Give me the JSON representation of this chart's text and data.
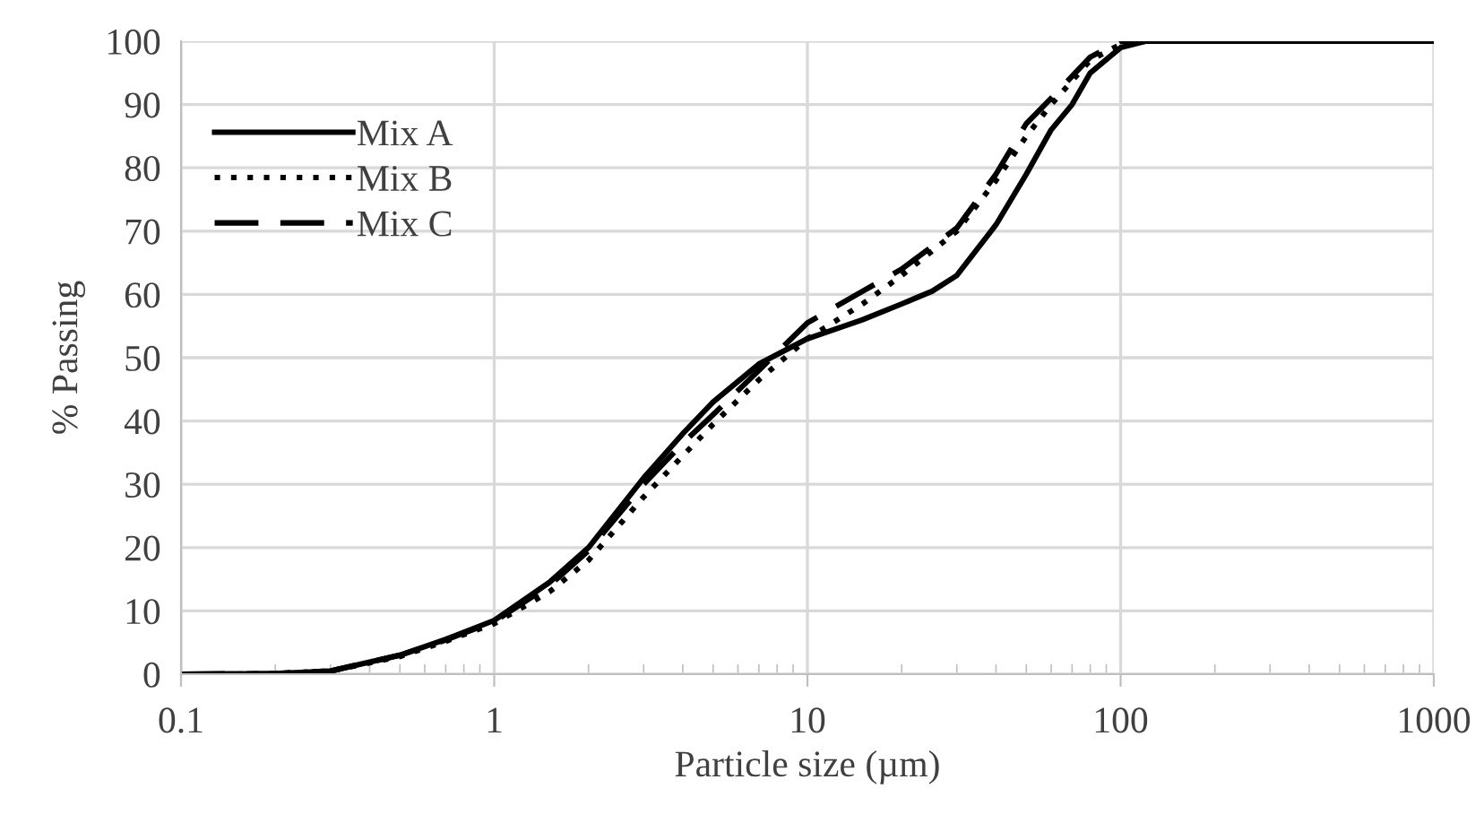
{
  "chart_data": {
    "type": "line",
    "xlabel": "Particle size (µm)",
    "ylabel": "% Passing",
    "log": "x",
    "xlim": [
      0.1,
      1000
    ],
    "xticks": [
      0.1,
      1,
      10,
      100,
      1000
    ],
    "ylim": [
      0,
      100
    ],
    "yticks": [
      0,
      10,
      20,
      30,
      40,
      50,
      60,
      70,
      80,
      90,
      100
    ],
    "grid": true,
    "legend": "top left",
    "marker": "none",
    "series": [
      {
        "name": "Mix A",
        "color": "#000000",
        "line_style": "solid",
        "x": [
          0.1,
          0.2,
          0.3,
          0.5,
          0.7,
          1,
          1.5,
          2,
          3,
          4,
          5,
          7,
          10,
          15,
          20,
          25,
          30,
          40,
          50,
          60,
          70,
          80,
          100,
          120,
          1000
        ],
        "values": [
          0,
          0.1,
          0.5,
          3,
          5.5,
          8.5,
          14.5,
          20,
          31,
          38,
          43,
          49,
          53,
          56,
          58.5,
          60.5,
          63,
          71,
          79,
          86,
          90,
          95,
          99,
          100,
          100
        ]
      },
      {
        "name": "Mix B",
        "color": "#000000",
        "line_style": "dotted",
        "x": [
          0.15,
          0.2,
          0.3,
          0.5,
          0.7,
          1,
          1.5,
          2,
          3,
          4,
          5,
          7,
          10,
          15,
          20,
          30,
          40,
          50,
          60,
          80,
          100,
          120,
          1000
        ],
        "values": [
          0,
          0.1,
          0.5,
          2.8,
          5.2,
          8,
          13,
          18,
          28,
          34.5,
          39.5,
          46.5,
          53,
          58.5,
          63,
          70,
          78,
          85,
          90,
          97,
          99.5,
          100,
          100
        ]
      },
      {
        "name": "Mix C",
        "color": "#000000",
        "line_style": "dashed",
        "x": [
          0.1,
          0.2,
          0.3,
          0.5,
          0.7,
          1,
          1.5,
          2,
          3,
          4,
          5,
          7,
          10,
          15,
          20,
          30,
          40,
          50,
          60,
          80,
          100,
          700
        ],
        "values": [
          0,
          0.1,
          0.5,
          3,
          5.4,
          8.3,
          14,
          19.5,
          30,
          36.5,
          41,
          48,
          55.5,
          60.5,
          64,
          70.5,
          79,
          87,
          91,
          97.5,
          100,
          100
        ]
      }
    ]
  }
}
